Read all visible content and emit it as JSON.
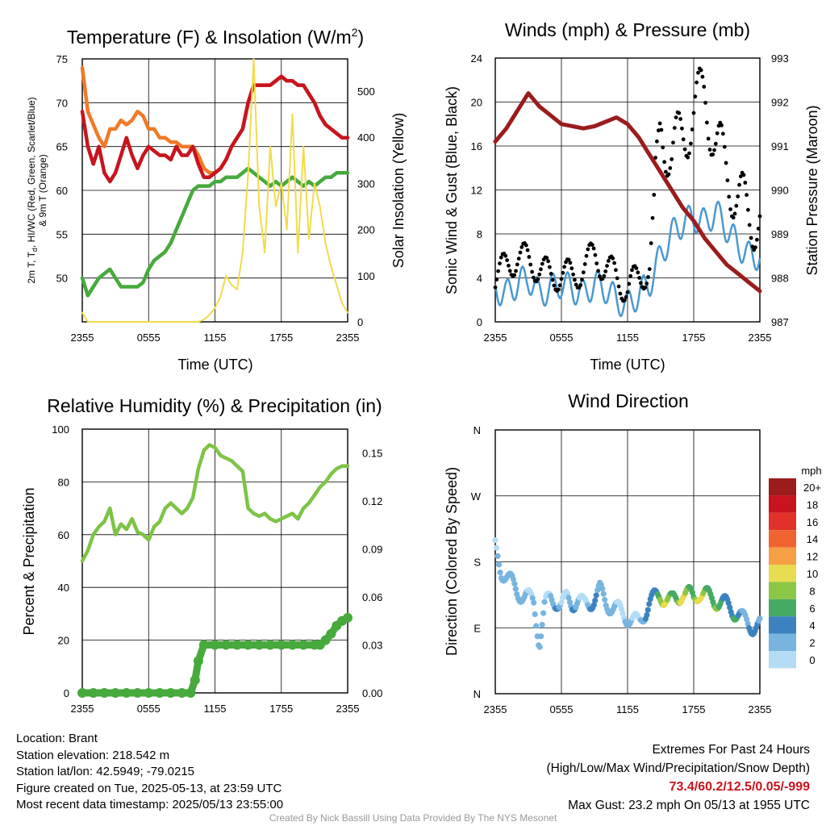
{
  "chart_data": [
    {
      "type": "line",
      "title": "Temperature (F) & Insolation (W/m²)",
      "xlabel": "Time (UTC)",
      "ylabel": "2m T, Tₐ, HI/WC (Red, Green, Scarlet/Blue) & 9m T (Orange)",
      "y2label": "Solar Insolation (Yellow)",
      "x_ticks": [
        "2355",
        "0555",
        "1155",
        "1755",
        "2355"
      ],
      "ylim": [
        45,
        75
      ],
      "y_ticks": [
        50,
        55,
        60,
        65,
        70,
        75
      ],
      "y2lim": [
        0,
        570
      ],
      "y2_ticks": [
        0,
        100,
        200,
        300,
        400,
        500
      ],
      "x_hours": [
        0,
        0.5,
        1,
        1.5,
        2,
        2.5,
        3,
        3.5,
        4,
        4.5,
        5,
        5.5,
        6,
        6.5,
        7,
        7.5,
        8,
        8.5,
        9,
        9.5,
        10,
        10.5,
        11,
        11.5,
        12,
        12.5,
        13,
        13.5,
        14,
        14.5,
        15,
        15.5,
        16,
        16.5,
        17,
        17.5,
        18,
        18.5,
        19,
        19.5,
        20,
        20.5,
        21,
        21.5,
        22,
        22.5,
        23,
        23.5,
        24
      ],
      "series": [
        {
          "name": "9m T",
          "color": "#f07a28",
          "values": [
            74,
            69,
            67.5,
            66,
            65,
            67,
            67,
            68,
            67.5,
            68,
            69,
            68.5,
            67,
            67,
            66,
            66,
            65.5,
            65.5,
            65,
            65,
            65,
            64,
            62.5,
            62,
            62,
            62.5,
            63.5,
            65,
            66,
            67,
            70,
            72,
            72,
            72,
            72,
            72.5,
            73,
            72.5,
            72.5,
            72,
            72,
            71,
            70,
            68.5,
            67.5,
            67,
            66.5,
            66,
            66
          ]
        },
        {
          "name": "2m T",
          "color": "#c8141e",
          "values": [
            69,
            65,
            63,
            65,
            62,
            61,
            62,
            64,
            66,
            64,
            62.5,
            64,
            65,
            64.5,
            64,
            64,
            63.5,
            65,
            64,
            64,
            65,
            63,
            61.5,
            61.5,
            62,
            62.5,
            63.5,
            65,
            66,
            67,
            70,
            72,
            72,
            72,
            72,
            72.5,
            73,
            72.5,
            72.5,
            72,
            72,
            71,
            70,
            68.5,
            67.5,
            67,
            66.5,
            66,
            66
          ]
        },
        {
          "name": "Tₐ",
          "color": "#46aa3c",
          "values": [
            50,
            48,
            49,
            50,
            50.5,
            51,
            50,
            49,
            49,
            49,
            49,
            49.5,
            51,
            52,
            52.5,
            53,
            54,
            55.5,
            57,
            58.5,
            60,
            60.5,
            60.5,
            60.5,
            61,
            61,
            61.5,
            61.5,
            61.5,
            62,
            62.5,
            62,
            61.5,
            61,
            60.5,
            61,
            60.5,
            61,
            61.5,
            61,
            60.5,
            61,
            60.5,
            61,
            61.5,
            61.5,
            62,
            62,
            62
          ]
        },
        {
          "name": "Solar Insolation",
          "axis": "y2",
          "color": "#f0dc4b",
          "values": [
            20,
            0,
            0,
            0,
            0,
            0,
            0,
            0,
            0,
            0,
            0,
            0,
            0,
            0,
            0,
            0,
            0,
            0,
            0,
            0,
            0,
            0,
            5,
            15,
            30,
            55,
            100,
            80,
            70,
            150,
            320,
            570,
            250,
            150,
            380,
            250,
            300,
            200,
            450,
            150,
            380,
            180,
            300,
            250,
            170,
            120,
            80,
            40,
            20
          ]
        }
      ]
    },
    {
      "type": "line",
      "title": "Winds (mph) & Pressure (mb)",
      "xlabel": "Time (UTC)",
      "ylabel": "Sonic Wind & Gust (Blue, Black)",
      "y2label": "Station Pressure (Maroon)",
      "x_ticks": [
        "2355",
        "0555",
        "1155",
        "1755",
        "2355"
      ],
      "ylim": [
        0,
        24
      ],
      "y_ticks": [
        0,
        4,
        8,
        12,
        16,
        20,
        24
      ],
      "y2lim": [
        987,
        993
      ],
      "y2_ticks": [
        987,
        988,
        989,
        990,
        991,
        992,
        993
      ],
      "series": [
        {
          "name": "Sonic Wind",
          "color": "#4a98d0",
          "x_hours": [
            0,
            1,
            2,
            3,
            4,
            5,
            6,
            7,
            8,
            9,
            10,
            11,
            12,
            13,
            14,
            15,
            16,
            17,
            18,
            19,
            20,
            21,
            22,
            23,
            24
          ],
          "values": [
            3,
            2.5,
            3.5,
            4,
            2.5,
            3,
            3.5,
            3,
            2.5,
            3.5,
            3,
            2,
            1.5,
            2.5,
            3.5,
            6,
            8,
            9,
            9.5,
            9,
            10,
            8.5,
            7,
            6,
            6
          ]
        },
        {
          "name": "Gust",
          "color": "#000000",
          "x_hours": [
            0,
            1,
            2,
            3,
            4,
            5,
            6,
            7,
            8,
            9,
            10,
            11,
            12,
            13,
            14,
            15,
            16,
            17,
            18,
            19,
            20,
            21,
            22,
            23,
            24
          ],
          "values": [
            4,
            5,
            6,
            5.5,
            5,
            4,
            4.5,
            4,
            5,
            6,
            5,
            4,
            3,
            4,
            5,
            18,
            15,
            17,
            19,
            21,
            16,
            14,
            11,
            10,
            9
          ]
        },
        {
          "name": "Station Pressure",
          "axis": "y2",
          "color": "#9b1c1c",
          "x_hours": [
            0,
            1,
            2,
            3,
            4,
            5,
            6,
            7,
            8,
            9,
            10,
            11,
            12,
            13,
            14,
            15,
            16,
            17,
            18,
            19,
            20,
            21,
            22,
            23,
            24
          ],
          "values": [
            991.1,
            991.4,
            991.8,
            992.2,
            991.9,
            991.7,
            991.5,
            991.45,
            991.4,
            991.45,
            991.55,
            991.65,
            991.5,
            991.2,
            990.8,
            990.4,
            990.0,
            989.6,
            989.3,
            988.9,
            988.6,
            988.3,
            988.1,
            987.9,
            987.7
          ]
        }
      ]
    },
    {
      "type": "line",
      "title": "Relative Humidity (%) & Precipitation (in)",
      "ylabel": "Percent & Precipitation",
      "x_ticks": [
        "2355",
        "0555",
        "1155",
        "1755",
        "2355"
      ],
      "ylim": [
        0,
        100
      ],
      "y_ticks": [
        0,
        20,
        40,
        60,
        80,
        100
      ],
      "y2lim": [
        0,
        0.165
      ],
      "y2_ticks": [
        "0.00",
        "0.03",
        "0.06",
        "0.09",
        "0.12",
        "0.15"
      ],
      "series": [
        {
          "name": "Relative Humidity",
          "color": "#7dc446",
          "x_hours": [
            0,
            0.5,
            1,
            1.5,
            2,
            2.5,
            3,
            3.5,
            4,
            4.5,
            5,
            5.5,
            6,
            6.5,
            7,
            7.5,
            8,
            8.5,
            9,
            9.5,
            10,
            10.5,
            11,
            11.5,
            12,
            12.5,
            13,
            13.5,
            14,
            14.5,
            15,
            15.5,
            16,
            16.5,
            17,
            17.5,
            18,
            18.5,
            19,
            19.5,
            20,
            20.5,
            21,
            21.5,
            22,
            22.5,
            23,
            23.5,
            24
          ],
          "values": [
            50,
            54,
            60,
            63,
            65,
            70,
            60,
            64,
            62,
            66,
            61,
            60,
            58,
            63,
            65,
            70,
            72,
            70,
            68,
            70,
            74,
            85,
            92,
            94,
            93,
            90,
            89,
            88,
            86,
            84,
            70,
            68,
            67,
            68,
            66,
            65,
            66,
            67,
            68,
            66,
            70,
            72,
            75,
            78,
            80,
            83,
            85,
            86,
            86
          ]
        },
        {
          "name": "Precipitation",
          "axis": "y2",
          "color": "#46aa3c",
          "x_hours": [
            0,
            1,
            2,
            3,
            4,
            5,
            6,
            7,
            8,
            9,
            9.8,
            10.2,
            10.5,
            11,
            12,
            13,
            14,
            15,
            16,
            17,
            18,
            19,
            20,
            21,
            21.5,
            22,
            22.5,
            23,
            23.5,
            24
          ],
          "values": [
            0,
            0,
            0,
            0,
            0,
            0,
            0,
            0,
            0,
            0,
            0,
            0.008,
            0.02,
            0.03,
            0.03,
            0.03,
            0.03,
            0.03,
            0.03,
            0.03,
            0.03,
            0.03,
            0.03,
            0.03,
            0.03,
            0.033,
            0.037,
            0.042,
            0.045,
            0.047
          ]
        }
      ]
    },
    {
      "type": "scatter",
      "title": "Wind Direction",
      "ylabel": "Direction (Colored By Speed)",
      "x_ticks": [
        "2355",
        "0555",
        "1155",
        "1755",
        "2355"
      ],
      "y_ticks": [
        "N",
        "E",
        "S",
        "W",
        "N"
      ],
      "ylim_deg": [
        0,
        360
      ],
      "legend_title": "mph",
      "legend_labels": [
        "20+",
        "18",
        "16",
        "14",
        "12",
        "10",
        "8",
        "6",
        "4",
        "2",
        "0"
      ],
      "legend_colors": [
        "#9b1c1c",
        "#c8141e",
        "#e03228",
        "#f06432",
        "#f5a044",
        "#e8dc50",
        "#8cc646",
        "#46aa64",
        "#3c82c0",
        "#78b4e0",
        "#b4dcf5"
      ],
      "x_hours": [
        0,
        0.5,
        1,
        1.5,
        2,
        2.5,
        3,
        3.5,
        4,
        4.5,
        5,
        5.5,
        6,
        6.5,
        7,
        7.5,
        8,
        8.5,
        9,
        9.5,
        10,
        10.5,
        11,
        11.5,
        12,
        12.5,
        13,
        13.5,
        14,
        14.5,
        15,
        15.5,
        16,
        16.5,
        17,
        17.5,
        18,
        18.5,
        19,
        19.5,
        20,
        20.5,
        21,
        21.5,
        22,
        22.5,
        23,
        23.5,
        24
      ],
      "direction_deg": [
        200,
        170,
        160,
        150,
        140,
        135,
        130,
        125,
        70,
        120,
        130,
        128,
        120,
        130,
        125,
        128,
        120,
        125,
        130,
        140,
        125,
        120,
        115,
        110,
        105,
        100,
        95,
        110,
        125,
        130,
        135,
        130,
        125,
        130,
        140,
        135,
        130,
        140,
        135,
        130,
        128,
        125,
        120,
        115,
        110,
        100,
        95,
        92,
        92
      ],
      "speed_mph": [
        3,
        2,
        2,
        4,
        3,
        2,
        3,
        3,
        1,
        3,
        3,
        3,
        2,
        3,
        3,
        2,
        2,
        3,
        4,
        4,
        3,
        2,
        3,
        2,
        1,
        2,
        3,
        2,
        4,
        6,
        8,
        9,
        9,
        8,
        10,
        9,
        8,
        10,
        9,
        8,
        7,
        6,
        6,
        5,
        5,
        4,
        4,
        4,
        4
      ]
    }
  ],
  "tick_labels": {
    "temp_y": [
      "50",
      "55",
      "60",
      "65",
      "70",
      "75"
    ],
    "temp_y2": [
      "0",
      "100",
      "200",
      "300",
      "400",
      "500"
    ],
    "wind_y": [
      "0",
      "4",
      "8",
      "12",
      "16",
      "20",
      "24"
    ],
    "wind_y2": [
      "987",
      "988",
      "989",
      "990",
      "991",
      "992",
      "993"
    ],
    "rh_y": [
      "0",
      "20",
      "40",
      "60",
      "80",
      "100"
    ],
    "rh_y2": [
      "0.00",
      "0.03",
      "0.06",
      "0.09",
      "0.12",
      "0.15"
    ],
    "x": [
      "2355",
      "0555",
      "1155",
      "1755",
      "2355"
    ],
    "dir_y": [
      "N",
      "E",
      "S",
      "W",
      "N"
    ]
  },
  "info": {
    "location": "Location: Brant",
    "elevation": "Station elevation: 218.542 m",
    "latlon": "Station lat/lon: 42.5949; -79.0215",
    "created": "Figure created on Tue, 2025-05-13, at 23:59 UTC",
    "recent": "Most recent data timestamp: 2025/05/13 23:55:00"
  },
  "extremes": {
    "heading": "Extremes For Past 24 Hours",
    "subheading": "(High/Low/Max Wind/Precipitation/Snow Depth)",
    "values": "73.4/60.2/12.5/0.05/-999",
    "gust": "Max Gust: 23.2 mph On 05/13 at 1955 UTC"
  },
  "credit": "Created By Nick Bassill Using Data Provided By The NYS Mesonet"
}
